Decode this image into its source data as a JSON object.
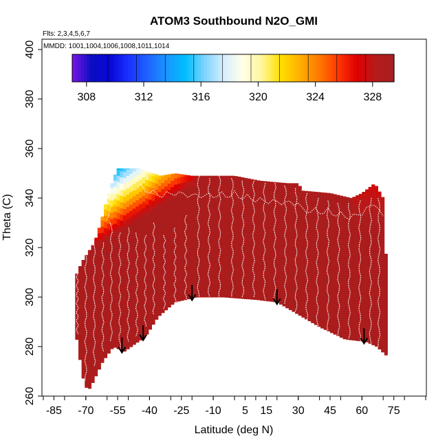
{
  "chart_data": {
    "type": "heatmap",
    "title": "ATOM3 Southbound N2O_GMI",
    "annotations": [
      "Flts: 2,3,4,5,6,7",
      "MMDD: 1001,1004,1006,1008,1011,1014"
    ],
    "xlabel": "Latitude (deg N)",
    "ylabel": "Theta (C)",
    "xlim": [
      -90,
      90
    ],
    "ylim": [
      260,
      405
    ],
    "x_tick_labels": [
      "-85",
      "-70",
      "-55",
      "-40",
      "-25",
      "-10",
      "5",
      "15",
      "30",
      "45",
      "60",
      "75"
    ],
    "x_tick_values": [
      -85,
      -70,
      -55,
      -40,
      -25,
      -10,
      5,
      15,
      30,
      45,
      60,
      75
    ],
    "y_ticks": [
      260,
      280,
      300,
      320,
      340,
      360,
      380,
      400
    ],
    "colorbar": {
      "range": [
        307,
        329.5
      ],
      "tick_labels": [
        "308",
        "312",
        "316",
        "320",
        "324",
        "328"
      ],
      "tick_values": [
        308,
        312,
        316,
        320,
        324,
        328
      ],
      "colors": [
        "#7B16E8",
        "#0D0DC2",
        "#0707D8",
        "#1A33FF",
        "#1E64FF",
        "#1A96FF",
        "#00BFFF",
        "#7FD4FF",
        "#D6EEFF",
        "#FFFFE8",
        "#FFF59A",
        "#FFE000",
        "#FFB000",
        "#FF7B00",
        "#FF3A00",
        "#E00000",
        "#B81A1A",
        "#A51F1F"
      ]
    },
    "arrow_latitudes": [
      -53,
      -43,
      -20,
      20,
      61
    ],
    "description_values": {
      "background_n2o_ppb": 329,
      "low_lat_south_theta_min": 262
    }
  }
}
